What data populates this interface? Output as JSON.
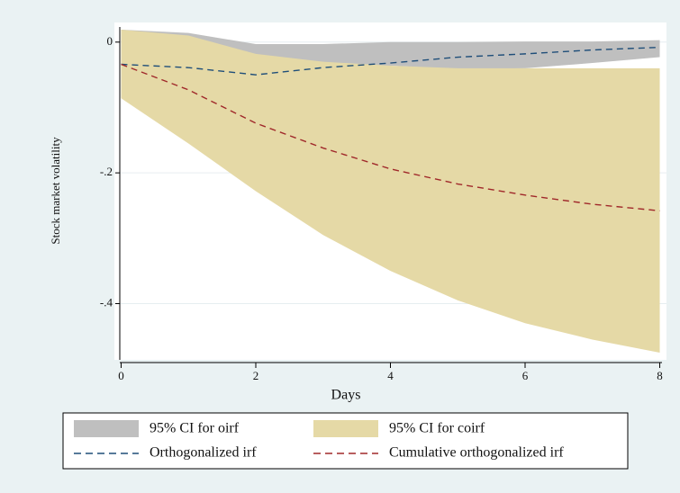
{
  "chart_data": {
    "type": "irf",
    "x": [
      0,
      1,
      2,
      3,
      4,
      5,
      6,
      7,
      8
    ],
    "xlim": [
      -0.1,
      8.1
    ],
    "xticks": [
      0,
      2,
      4,
      6,
      8
    ],
    "ylim": [
      -0.486,
      0.03
    ],
    "yticks": [
      {
        "value": 0,
        "label": "0"
      },
      {
        "value": -0.2,
        "label": "-.2"
      },
      {
        "value": -0.4,
        "label": "-.4"
      }
    ],
    "grid": true,
    "xlabel": "Days",
    "ylabel": "Stock market volatility",
    "series": [
      {
        "name": "95% CI for oirf",
        "color": "#bfbfbf",
        "kind": "band",
        "upper": [
          0.019,
          0.014,
          -0.003,
          -0.003,
          0,
          0,
          0.001,
          0.001,
          0.003
        ],
        "lower": [
          -0.086,
          -0.09,
          -0.1,
          -0.075,
          -0.036,
          -0.041,
          -0.04,
          -0.032,
          -0.023
        ]
      },
      {
        "name": "95% CI for coirf",
        "color": "#e5d9a6",
        "kind": "band",
        "upper": [
          0.019,
          0.01,
          -0.018,
          -0.03,
          -0.036,
          -0.04,
          -0.04,
          -0.04,
          -0.04
        ],
        "lower": [
          -0.086,
          -0.155,
          -0.228,
          -0.295,
          -0.35,
          -0.395,
          -0.43,
          -0.455,
          -0.475
        ]
      },
      {
        "name": "Orthogonalized irf",
        "color": "#1f4e79",
        "kind": "line",
        "values": [
          -0.034,
          -0.039,
          -0.05,
          -0.039,
          -0.032,
          -0.023,
          -0.018,
          -0.012,
          -0.008
        ]
      },
      {
        "name": "Cumulative orthogonalized irf",
        "color": "#a0282a",
        "kind": "line",
        "values": [
          -0.034,
          -0.073,
          -0.124,
          -0.162,
          -0.194,
          -0.217,
          -0.234,
          -0.248,
          -0.258
        ]
      }
    ]
  }
}
